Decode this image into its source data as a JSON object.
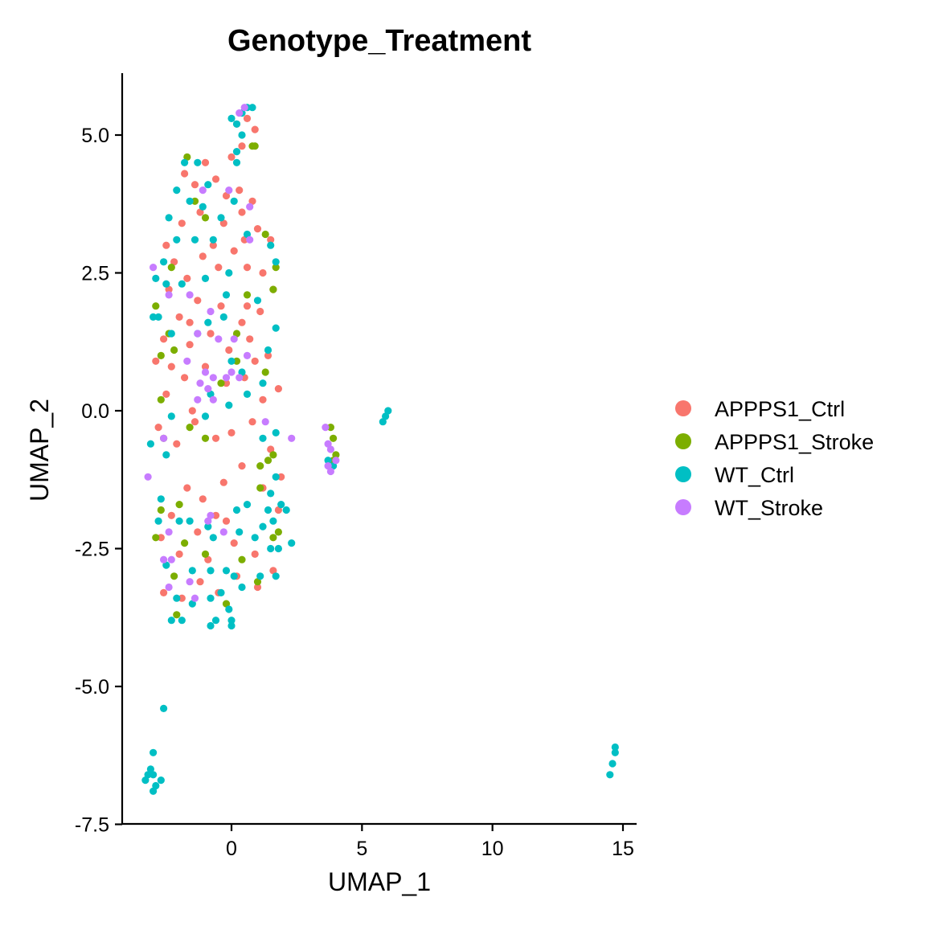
{
  "chart_data": {
    "type": "scatter",
    "title": "Genotype_Treatment",
    "xlabel": "UMAP_1",
    "ylabel": "UMAP_2",
    "xlim": [
      -4.2,
      15.6
    ],
    "ylim": [
      -7.5,
      6.1
    ],
    "x_ticks": [
      0,
      5,
      10,
      15
    ],
    "x_tick_labels": [
      "0",
      "5",
      "10",
      "15"
    ],
    "y_ticks": [
      5.0,
      2.5,
      0.0,
      -2.5,
      -5.0,
      -7.5
    ],
    "y_tick_labels": [
      "5.0",
      "2.5",
      "0.0",
      "-2.5",
      "-5.0",
      "-7.5"
    ],
    "grid": false,
    "legend_position": "right",
    "series": [
      {
        "name": "APPPS1_Ctrl",
        "color": "#F8766D",
        "points": [
          [
            -1.8,
            4.3
          ],
          [
            -1.4,
            4.1
          ],
          [
            -1.0,
            4.5
          ],
          [
            -0.6,
            4.2
          ],
          [
            -0.2,
            3.9
          ],
          [
            0.3,
            4.0
          ],
          [
            0.8,
            3.8
          ],
          [
            1.0,
            3.3
          ],
          [
            0.5,
            3.1
          ],
          [
            -0.3,
            3.4
          ],
          [
            -1.2,
            3.6
          ],
          [
            -1.9,
            3.4
          ],
          [
            -2.5,
            3.0
          ],
          [
            -2.2,
            2.7
          ],
          [
            -1.7,
            2.4
          ],
          [
            -1.1,
            2.8
          ],
          [
            -0.5,
            2.6
          ],
          [
            0.1,
            2.9
          ],
          [
            0.6,
            2.6
          ],
          [
            1.2,
            2.5
          ],
          [
            1.6,
            2.2
          ],
          [
            1.1,
            1.8
          ],
          [
            0.4,
            1.6
          ],
          [
            -0.4,
            1.9
          ],
          [
            -1.3,
            2.0
          ],
          [
            -2.0,
            1.7
          ],
          [
            -2.6,
            1.3
          ],
          [
            -2.9,
            0.9
          ],
          [
            -2.3,
            0.8
          ],
          [
            -1.6,
            1.2
          ],
          [
            -0.8,
            1.4
          ],
          [
            -0.1,
            1.1
          ],
          [
            0.7,
            1.3
          ],
          [
            1.4,
            1.0
          ],
          [
            1.8,
            0.4
          ],
          [
            1.2,
            0.2
          ],
          [
            0.5,
            0.6
          ],
          [
            -0.2,
            0.5
          ],
          [
            -1.0,
            0.8
          ],
          [
            -1.8,
            0.6
          ],
          [
            -2.5,
            0.3
          ],
          [
            -2.8,
            -0.3
          ],
          [
            -2.1,
            -0.6
          ],
          [
            -1.4,
            -0.2
          ],
          [
            -0.6,
            -0.5
          ],
          [
            0.0,
            -0.4
          ],
          [
            0.8,
            -0.2
          ],
          [
            1.5,
            -0.7
          ],
          [
            1.9,
            -1.2
          ],
          [
            1.2,
            -1.4
          ],
          [
            0.4,
            -1.0
          ],
          [
            -0.3,
            -1.3
          ],
          [
            -1.1,
            -1.6
          ],
          [
            -1.7,
            -1.4
          ],
          [
            -2.3,
            -1.9
          ],
          [
            -2.7,
            -2.3
          ],
          [
            -2.0,
            -2.6
          ],
          [
            -1.3,
            -2.2
          ],
          [
            -0.6,
            -1.9
          ],
          [
            0.1,
            -2.4
          ],
          [
            0.9,
            -2.6
          ],
          [
            1.6,
            -2.9
          ],
          [
            1.0,
            -3.2
          ],
          [
            0.2,
            -3.0
          ],
          [
            -0.5,
            -3.3
          ],
          [
            -1.2,
            -3.1
          ],
          [
            -1.9,
            -3.4
          ],
          [
            -2.6,
            -3.3
          ],
          [
            -0.9,
            -2.7
          ],
          [
            0.6,
            1.9
          ],
          [
            -0.7,
            3.0
          ],
          [
            1.5,
            3.1
          ],
          [
            0.2,
            5.2
          ],
          [
            0.6,
            5.3
          ],
          [
            0.9,
            5.1
          ],
          [
            0.4,
            4.8
          ],
          [
            0.0,
            4.6
          ],
          [
            -2.4,
            2.2
          ],
          [
            0.9,
            0.9
          ],
          [
            -1.5,
            0.0
          ],
          [
            1.8,
            -1.8
          ],
          [
            -0.2,
            -2.0
          ],
          [
            0.4,
            3.6
          ],
          [
            -1.6,
            1.6
          ]
        ]
      },
      {
        "name": "APPPS1_Stroke",
        "color": "#7CAE00",
        "points": [
          [
            -1.7,
            4.6
          ],
          [
            0.8,
            4.8
          ],
          [
            0.9,
            4.8
          ],
          [
            -1.0,
            3.5
          ],
          [
            -2.3,
            2.6
          ],
          [
            1.3,
            3.2
          ],
          [
            1.7,
            2.6
          ],
          [
            -2.9,
            1.9
          ],
          [
            -2.4,
            1.4
          ],
          [
            1.6,
            2.2
          ],
          [
            0.6,
            2.1
          ],
          [
            -2.7,
            1.0
          ],
          [
            -2.2,
            1.1
          ],
          [
            1.3,
            0.7
          ],
          [
            0.2,
            0.9
          ],
          [
            -0.4,
            0.5
          ],
          [
            -2.7,
            0.2
          ],
          [
            -1.6,
            -0.3
          ],
          [
            -1.0,
            -0.5
          ],
          [
            -2.6,
            -0.5
          ],
          [
            3.8,
            -0.3
          ],
          [
            3.9,
            -0.5
          ],
          [
            4.0,
            -0.8
          ],
          [
            3.9,
            -0.9
          ],
          [
            1.1,
            -1.0
          ],
          [
            1.4,
            -0.9
          ],
          [
            1.6,
            -0.8
          ],
          [
            1.1,
            -1.4
          ],
          [
            -2.0,
            -1.7
          ],
          [
            -2.7,
            -1.8
          ],
          [
            -2.9,
            -2.3
          ],
          [
            1.6,
            -2.3
          ],
          [
            1.8,
            -2.2
          ],
          [
            -1.8,
            -2.4
          ],
          [
            -1.0,
            -2.6
          ],
          [
            0.4,
            -2.7
          ],
          [
            -2.2,
            -3.0
          ],
          [
            -2.1,
            -3.7
          ],
          [
            -0.2,
            -3.5
          ],
          [
            1.0,
            -3.1
          ],
          [
            0.2,
            1.4
          ],
          [
            -1.4,
            3.8
          ]
        ]
      },
      {
        "name": "WT_Ctrl",
        "color": "#00BFC4",
        "points": [
          [
            0.6,
            5.5
          ],
          [
            0.8,
            5.5
          ],
          [
            0.4,
            5.4
          ],
          [
            0.2,
            5.2
          ],
          [
            0.0,
            5.3
          ],
          [
            0.4,
            5.0
          ],
          [
            0.2,
            4.7
          ],
          [
            0.2,
            4.5
          ],
          [
            -0.9,
            4.1
          ],
          [
            -1.3,
            4.5
          ],
          [
            -1.8,
            4.5
          ],
          [
            -2.1,
            4.0
          ],
          [
            -1.6,
            3.8
          ],
          [
            -2.4,
            3.5
          ],
          [
            -1.1,
            3.7
          ],
          [
            -0.4,
            3.5
          ],
          [
            0.1,
            3.8
          ],
          [
            0.6,
            3.2
          ],
          [
            -0.7,
            3.1
          ],
          [
            -1.4,
            3.1
          ],
          [
            -2.1,
            3.1
          ],
          [
            -2.6,
            2.7
          ],
          [
            -2.9,
            2.4
          ],
          [
            -2.5,
            2.3
          ],
          [
            -1.9,
            2.3
          ],
          [
            -1.0,
            2.4
          ],
          [
            -0.1,
            2.5
          ],
          [
            1.5,
            3.0
          ],
          [
            1.7,
            2.7
          ],
          [
            1.7,
            1.5
          ],
          [
            1.4,
            1.1
          ],
          [
            -3.0,
            1.7
          ],
          [
            -2.8,
            1.7
          ],
          [
            -2.3,
            1.4
          ],
          [
            -0.9,
            1.6
          ],
          [
            -0.3,
            1.7
          ],
          [
            0.0,
            0.9
          ],
          [
            0.4,
            0.7
          ],
          [
            1.2,
            0.5
          ],
          [
            -0.1,
            0.1
          ],
          [
            0.6,
            0.3
          ],
          [
            -0.8,
            0.3
          ],
          [
            -2.3,
            -0.1
          ],
          [
            -2.5,
            -0.8
          ],
          [
            -3.1,
            -0.6
          ],
          [
            -1.0,
            -0.1
          ],
          [
            5.9,
            -0.1
          ],
          [
            6.0,
            0.0
          ],
          [
            5.8,
            -0.2
          ],
          [
            3.7,
            -0.9
          ],
          [
            3.9,
            -1.0
          ],
          [
            1.2,
            -0.5
          ],
          [
            1.7,
            -1.2
          ],
          [
            1.5,
            -1.5
          ],
          [
            1.4,
            -1.8
          ],
          [
            2.1,
            -1.8
          ],
          [
            1.6,
            -2.0
          ],
          [
            1.2,
            -2.1
          ],
          [
            0.9,
            -2.3
          ],
          [
            1.8,
            -2.5
          ],
          [
            2.3,
            -2.4
          ],
          [
            1.5,
            -2.5
          ],
          [
            -2.7,
            -1.6
          ],
          [
            -2.8,
            -2.0
          ],
          [
            -1.6,
            -2.0
          ],
          [
            -0.9,
            -2.1
          ],
          [
            -0.7,
            -2.3
          ],
          [
            0.2,
            -1.8
          ],
          [
            -2.5,
            -2.8
          ],
          [
            -1.5,
            -2.9
          ],
          [
            -0.8,
            -2.9
          ],
          [
            -0.2,
            -2.9
          ],
          [
            0.4,
            -3.2
          ],
          [
            1.1,
            -3.0
          ],
          [
            -2.1,
            -3.4
          ],
          [
            -1.5,
            -3.5
          ],
          [
            -0.8,
            -3.4
          ],
          [
            -0.4,
            -3.3
          ],
          [
            -2.3,
            -3.8
          ],
          [
            -1.9,
            -3.8
          ],
          [
            -0.6,
            -3.8
          ],
          [
            -0.8,
            -3.9
          ],
          [
            -0.1,
            -3.6
          ],
          [
            0.0,
            -3.8
          ],
          [
            0.0,
            -3.9
          ],
          [
            0.1,
            -3.0
          ],
          [
            1.7,
            -3.0
          ],
          [
            -2.6,
            -5.4
          ],
          [
            -3.0,
            -6.2
          ],
          [
            -3.1,
            -6.5
          ],
          [
            -3.2,
            -6.6
          ],
          [
            -3.0,
            -6.6
          ],
          [
            -3.3,
            -6.7
          ],
          [
            -2.7,
            -6.7
          ],
          [
            -2.9,
            -6.8
          ],
          [
            -3.0,
            -6.9
          ],
          [
            14.7,
            -6.1
          ],
          [
            14.7,
            -6.2
          ],
          [
            14.6,
            -6.4
          ],
          [
            14.5,
            -6.6
          ],
          [
            1.0,
            2.0
          ],
          [
            -0.2,
            2.1
          ],
          [
            -1.3,
            1.4
          ],
          [
            1.7,
            -0.4
          ],
          [
            0.6,
            -1.7
          ],
          [
            0.3,
            -2.2
          ],
          [
            -2.0,
            -2.0
          ],
          [
            1.9,
            -1.7
          ]
        ]
      },
      {
        "name": "WT_Stroke",
        "color": "#C77CFF",
        "points": [
          [
            0.3,
            5.4
          ],
          [
            0.5,
            5.5
          ],
          [
            0.7,
            3.7
          ],
          [
            -0.1,
            4.0
          ],
          [
            -1.1,
            4.0
          ],
          [
            -3.0,
            2.6
          ],
          [
            -2.4,
            2.1
          ],
          [
            -1.6,
            2.1
          ],
          [
            -0.8,
            1.8
          ],
          [
            -1.3,
            1.4
          ],
          [
            -0.5,
            1.3
          ],
          [
            0.1,
            1.3
          ],
          [
            0.6,
            1.0
          ],
          [
            -1.7,
            0.9
          ],
          [
            -1.0,
            0.7
          ],
          [
            -0.7,
            0.6
          ],
          [
            0.0,
            0.7
          ],
          [
            -0.2,
            0.6
          ],
          [
            0.3,
            0.6
          ],
          [
            -1.2,
            0.5
          ],
          [
            -0.9,
            0.4
          ],
          [
            -1.3,
            0.2
          ],
          [
            -0.7,
            0.2
          ],
          [
            1.3,
            -0.2
          ],
          [
            -2.6,
            -0.5
          ],
          [
            3.6,
            -0.3
          ],
          [
            3.7,
            -0.6
          ],
          [
            3.8,
            -0.7
          ],
          [
            4.0,
            -0.9
          ],
          [
            3.8,
            -1.1
          ],
          [
            3.7,
            -1.0
          ],
          [
            2.3,
            -0.5
          ],
          [
            -3.2,
            -1.2
          ],
          [
            -2.4,
            -2.2
          ],
          [
            -0.9,
            -2.0
          ],
          [
            -0.3,
            -2.2
          ],
          [
            -2.6,
            -2.7
          ],
          [
            -2.3,
            -2.7
          ],
          [
            -1.6,
            -3.1
          ],
          [
            -2.4,
            -3.2
          ],
          [
            -1.4,
            -3.4
          ],
          [
            -0.8,
            -1.9
          ],
          [
            0.7,
            3.1
          ]
        ]
      }
    ]
  }
}
